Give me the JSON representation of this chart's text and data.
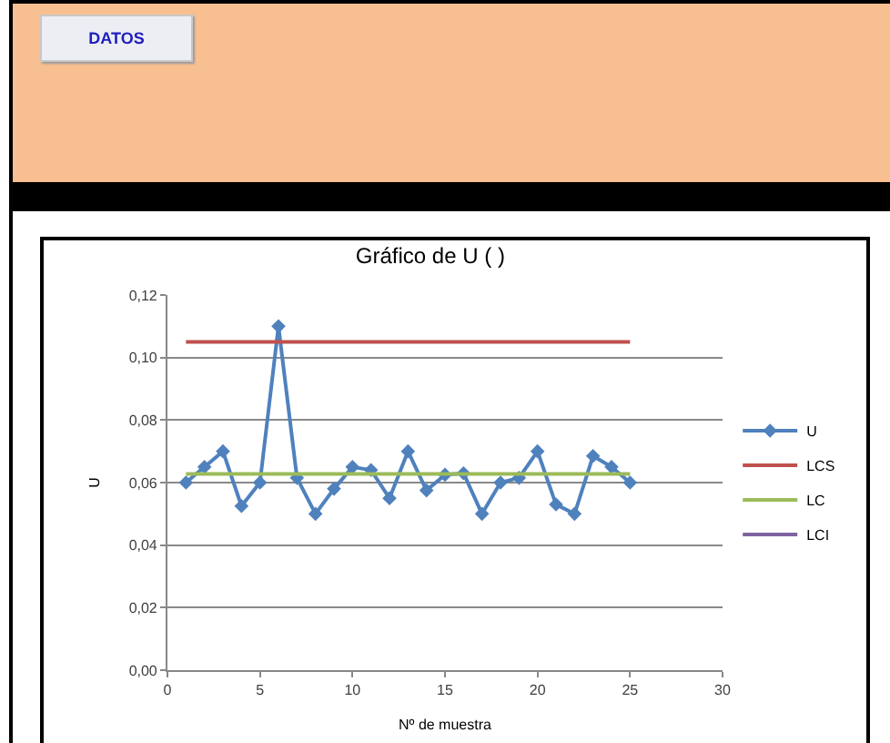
{
  "chart_data": {
    "type": "line",
    "title": "Gráfico de U ( )",
    "xlabel": "Nº de muestra",
    "ylabel": "U",
    "annotations": [
      "DATOS"
    ],
    "x": [
      1,
      2,
      3,
      4,
      5,
      6,
      7,
      8,
      9,
      10,
      11,
      12,
      13,
      14,
      15,
      16,
      17,
      18,
      19,
      20,
      21,
      22,
      23,
      24,
      25
    ],
    "series": [
      {
        "name": "U",
        "color": "#4f81bd",
        "marker": "diamond",
        "values": [
          0.06,
          0.065,
          0.07,
          0.0525,
          0.06,
          0.11,
          0.0615,
          0.05,
          0.058,
          0.065,
          0.064,
          0.055,
          0.07,
          0.0575,
          0.0625,
          0.063,
          0.05,
          0.06,
          0.0615,
          0.07,
          0.053,
          0.05,
          0.0685,
          0.065,
          0.06
        ]
      },
      {
        "name": "LCS",
        "color": "#c0504d",
        "marker": "none",
        "values": [
          0.105,
          0.105,
          0.105,
          0.105,
          0.105,
          0.105,
          0.105,
          0.105,
          0.105,
          0.105,
          0.105,
          0.105,
          0.105,
          0.105,
          0.105,
          0.105,
          0.105,
          0.105,
          0.105,
          0.105,
          0.105,
          0.105,
          0.105,
          0.105,
          0.105
        ]
      },
      {
        "name": "LC",
        "color": "#9bbb59",
        "marker": "none",
        "values": [
          0.0628,
          0.0628,
          0.0628,
          0.0628,
          0.0628,
          0.0628,
          0.0628,
          0.0628,
          0.0628,
          0.0628,
          0.0628,
          0.0628,
          0.0628,
          0.0628,
          0.0628,
          0.0628,
          0.0628,
          0.0628,
          0.0628,
          0.0628,
          0.0628,
          0.0628,
          0.0628,
          0.0628,
          0.0628
        ]
      },
      {
        "name": "LCI",
        "color": "#8064a2",
        "marker": "none",
        "values": [
          null,
          null,
          null,
          null,
          null,
          null,
          null,
          null,
          null,
          null,
          null,
          null,
          null,
          null,
          null,
          null,
          null,
          null,
          null,
          null,
          null,
          null,
          null,
          null,
          null
        ]
      }
    ],
    "xlim": [
      0,
      30
    ],
    "xticks": [
      0,
      5,
      10,
      15,
      20,
      25,
      30
    ],
    "ylim": [
      0,
      0.12
    ],
    "yticks": [
      {
        "value": 0,
        "label": "0,00"
      },
      {
        "value": 0.02,
        "label": "0,02"
      },
      {
        "value": 0.04,
        "label": "0,04"
      },
      {
        "value": 0.06,
        "label": "0,06"
      },
      {
        "value": 0.08,
        "label": "0,08"
      },
      {
        "value": 0.1,
        "label": "0,10"
      },
      {
        "value": 0.12,
        "label": "0,12"
      }
    ],
    "grid": "y",
    "legend": "right"
  }
}
